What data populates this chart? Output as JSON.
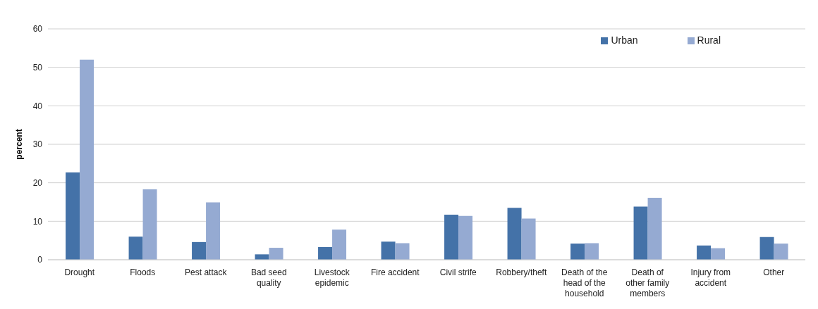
{
  "chart_data": {
    "type": "bar",
    "ylabel": "percent",
    "categories": [
      "Drought",
      "Floods",
      "Pest attack",
      "Bad seed quality",
      "Livestock epidemic",
      "Fire accident",
      "Civil strife",
      "Robbery/theft",
      "Death of the head of the household",
      "Death of other family members",
      "Injury from accident",
      "Other"
    ],
    "series": [
      {
        "name": "Urban",
        "color": "#4472a8",
        "values": [
          22.7,
          6.0,
          4.6,
          1.4,
          3.3,
          4.7,
          11.7,
          13.5,
          4.2,
          13.8,
          3.7,
          5.9
        ]
      },
      {
        "name": "Rural",
        "color": "#95aad2",
        "values": [
          52,
          18.3,
          14.9,
          3.1,
          7.8,
          4.3,
          11.4,
          10.7,
          4.3,
          16.1,
          3.0,
          4.2
        ]
      }
    ],
    "ylim": [
      0,
      60
    ],
    "yticks": [
      0,
      10,
      20,
      30,
      40,
      50,
      60
    ],
    "grid": "y",
    "legend": "top right"
  }
}
